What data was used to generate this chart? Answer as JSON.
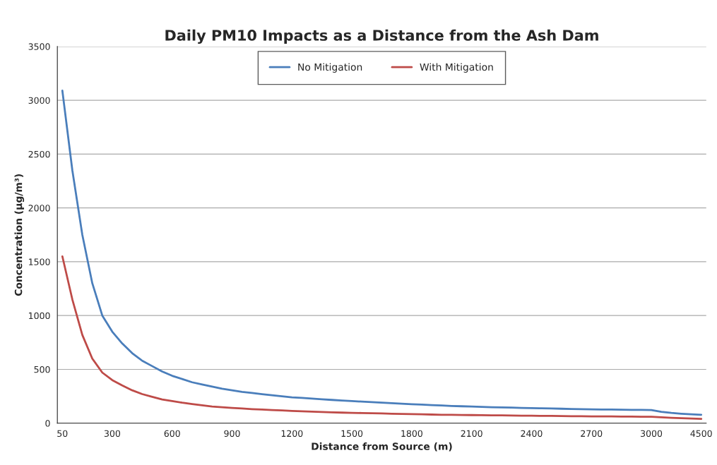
{
  "chart_data": {
    "type": "line",
    "title": "Daily PM10 Impacts as a Distance from the Ash Dam",
    "xlabel": "Distance from Source (m)",
    "ylabel": "Concentration (μg/m³)",
    "categories": [
      "50",
      null,
      null,
      null,
      null,
      "300",
      null,
      null,
      null,
      null,
      null,
      "600",
      null,
      null,
      null,
      null,
      null,
      "900",
      null,
      null,
      null,
      null,
      null,
      "1200",
      null,
      null,
      null,
      null,
      null,
      "1500",
      null,
      null,
      null,
      null,
      null,
      "1800",
      null,
      null,
      null,
      null,
      null,
      "2100",
      null,
      null,
      null,
      null,
      null,
      "2400",
      null,
      null,
      null,
      null,
      null,
      "2700",
      null,
      null,
      null,
      null,
      null,
      "3000",
      null,
      null,
      null,
      null,
      "4500"
    ],
    "series": [
      {
        "name": "No Mitigation",
        "color": "#4a7ebb",
        "values": [
          3090,
          2350,
          1750,
          1300,
          1000,
          850,
          740,
          650,
          580,
          530,
          480,
          440,
          410,
          380,
          360,
          340,
          320,
          305,
          290,
          280,
          270,
          260,
          250,
          240,
          235,
          228,
          222,
          216,
          210,
          205,
          200,
          195,
          190,
          185,
          180,
          176,
          172,
          168,
          164,
          160,
          157,
          154,
          151,
          148,
          146,
          144,
          142,
          140,
          138,
          136,
          134,
          132,
          130,
          128,
          127,
          126,
          125,
          124,
          123,
          122,
          105,
          95,
          88,
          82,
          78
        ]
      },
      {
        "name": "With Mitigation",
        "color": "#be4b48",
        "values": [
          1550,
          1150,
          820,
          600,
          470,
          400,
          350,
          305,
          270,
          245,
          220,
          205,
          190,
          178,
          166,
          155,
          148,
          142,
          136,
          130,
          126,
          122,
          118,
          114,
          110,
          107,
          104,
          101,
          98,
          96,
          94,
          92,
          90,
          88,
          86,
          84,
          82,
          80,
          78,
          77,
          76,
          75,
          74,
          73,
          72,
          71,
          70,
          69,
          68,
          67,
          66,
          65,
          64,
          63,
          62,
          62,
          61,
          61,
          60,
          60,
          55,
          50,
          46,
          43,
          40
        ]
      }
    ],
    "ylim": [
      0,
      3500
    ],
    "yticks": [
      0,
      500,
      1000,
      1500,
      2000,
      2500,
      3000,
      3500
    ],
    "grid": "y",
    "legend": "top",
    "marker": "none",
    "line_style": "solid"
  }
}
